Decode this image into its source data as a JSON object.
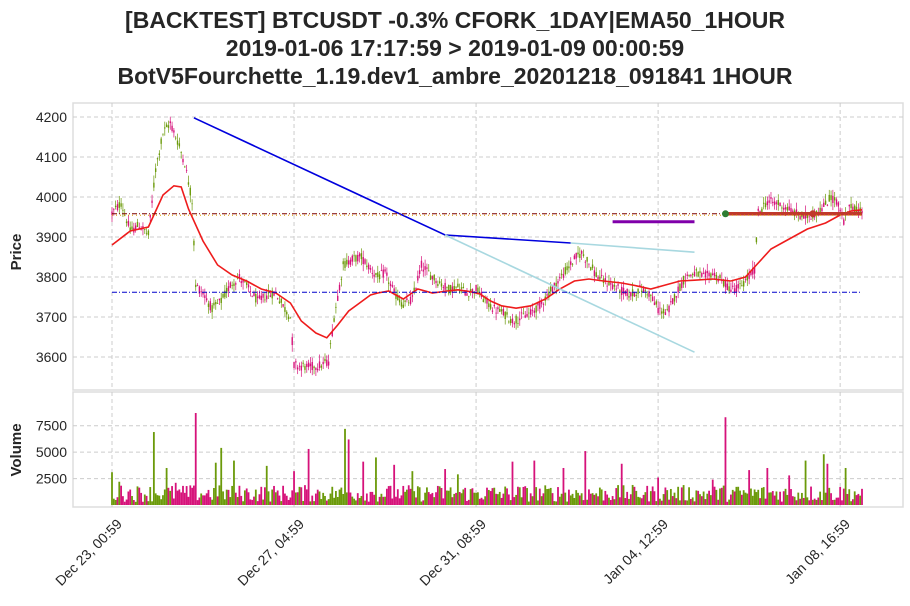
{
  "title": {
    "line1": "[BACKTEST] BTCUSDT -0.3% CFORK_1DAY|EMA50_1HOUR",
    "line2": "2019-01-06 17:17:59 > 2019-01-09 00:00:59",
    "line3": "BotV5Fourchette_1.19.dev1_ambre_20201218_091841 1HOUR"
  },
  "colors": {
    "up": "#6b9a0a",
    "down": "#d6127a",
    "ema": "#ee1c1c",
    "trend_line": "#0000dd",
    "fork_line": "#a8d8e0",
    "entry_line": "#7a0000",
    "mid_line": "#0000cc",
    "signal": "#8000aa",
    "position": "#c0392b",
    "grid": "#cccccc"
  },
  "chart_data": [
    {
      "type": "candlestick",
      "panel": "price",
      "ylabel": "Price",
      "ylim": [
        3520,
        4230
      ],
      "yticks": [
        3600,
        3700,
        3800,
        3900,
        4000,
        4100,
        4200
      ],
      "x_tick_labels": [
        "Dec 23, 00:59",
        "Dec 27, 04:59",
        "Dec 31, 08:59",
        "Jan 04, 12:59",
        "Jan 08, 16:59"
      ],
      "x_range_hours": [
        0,
        412
      ],
      "tick_hours": [
        0,
        100,
        200,
        300,
        400
      ],
      "price_path": [
        [
          0,
          3960
        ],
        [
          5,
          3985
        ],
        [
          10,
          3915
        ],
        [
          15,
          3930
        ],
        [
          20,
          3905
        ],
        [
          24,
          4070
        ],
        [
          28,
          4160
        ],
        [
          32,
          4185
        ],
        [
          36,
          4140
        ],
        [
          40,
          4085
        ],
        [
          44,
          3990
        ],
        [
          46,
          3780
        ],
        [
          50,
          3760
        ],
        [
          55,
          3720
        ],
        [
          60,
          3740
        ],
        [
          65,
          3780
        ],
        [
          70,
          3800
        ],
        [
          75,
          3770
        ],
        [
          80,
          3740
        ],
        [
          85,
          3755
        ],
        [
          90,
          3760
        ],
        [
          95,
          3720
        ],
        [
          98,
          3700
        ],
        [
          100,
          3580
        ],
        [
          108,
          3575
        ],
        [
          115,
          3580
        ],
        [
          119,
          3590
        ],
        [
          122,
          3700
        ],
        [
          127,
          3830
        ],
        [
          132,
          3845
        ],
        [
          137,
          3850
        ],
        [
          142,
          3820
        ],
        [
          146,
          3800
        ],
        [
          150,
          3810
        ],
        [
          155,
          3760
        ],
        [
          160,
          3730
        ],
        [
          165,
          3745
        ],
        [
          170,
          3830
        ],
        [
          175,
          3805
        ],
        [
          180,
          3785
        ],
        [
          185,
          3770
        ],
        [
          190,
          3775
        ],
        [
          195,
          3760
        ],
        [
          200,
          3770
        ],
        [
          205,
          3740
        ],
        [
          210,
          3720
        ],
        [
          215,
          3710
        ],
        [
          220,
          3690
        ],
        [
          225,
          3700
        ],
        [
          230,
          3710
        ],
        [
          235,
          3730
        ],
        [
          240,
          3760
        ],
        [
          245,
          3790
        ],
        [
          250,
          3820
        ],
        [
          255,
          3850
        ],
        [
          258,
          3860
        ],
        [
          262,
          3835
        ],
        [
          266,
          3805
        ],
        [
          270,
          3790
        ],
        [
          275,
          3780
        ],
        [
          280,
          3765
        ],
        [
          285,
          3755
        ],
        [
          290,
          3770
        ],
        [
          295,
          3760
        ],
        [
          300,
          3720
        ],
        [
          305,
          3710
        ],
        [
          310,
          3760
        ],
        [
          315,
          3800
        ],
        [
          320,
          3810
        ],
        [
          325,
          3800
        ],
        [
          330,
          3810
        ],
        [
          335,
          3790
        ],
        [
          340,
          3770
        ],
        [
          345,
          3775
        ],
        [
          350,
          3800
        ],
        [
          353,
          3820
        ],
        [
          355,
          3960
        ],
        [
          360,
          3990
        ],
        [
          365,
          3985
        ],
        [
          370,
          3975
        ],
        [
          375,
          3960
        ],
        [
          380,
          3950
        ],
        [
          385,
          3955
        ],
        [
          390,
          3970
        ],
        [
          395,
          4000
        ],
        [
          398,
          3990
        ],
        [
          402,
          3940
        ],
        [
          406,
          3980
        ],
        [
          410,
          3965
        ],
        [
          412,
          3960
        ]
      ],
      "ema": [
        [
          0,
          3880
        ],
        [
          10,
          3915
        ],
        [
          20,
          3925
        ],
        [
          28,
          4005
        ],
        [
          34,
          4028
        ],
        [
          38,
          4025
        ],
        [
          42,
          3970
        ],
        [
          50,
          3890
        ],
        [
          58,
          3830
        ],
        [
          66,
          3805
        ],
        [
          74,
          3790
        ],
        [
          82,
          3770
        ],
        [
          90,
          3760
        ],
        [
          98,
          3735
        ],
        [
          104,
          3690
        ],
        [
          112,
          3660
        ],
        [
          118,
          3648
        ],
        [
          124,
          3680
        ],
        [
          130,
          3715
        ],
        [
          136,
          3735
        ],
        [
          142,
          3755
        ],
        [
          146,
          3760
        ],
        [
          152,
          3765
        ],
        [
          160,
          3745
        ],
        [
          168,
          3770
        ],
        [
          176,
          3760
        ],
        [
          184,
          3765
        ],
        [
          190,
          3768
        ],
        [
          196,
          3764
        ],
        [
          202,
          3758
        ],
        [
          208,
          3740
        ],
        [
          214,
          3728
        ],
        [
          222,
          3722
        ],
        [
          230,
          3728
        ],
        [
          238,
          3745
        ],
        [
          246,
          3770
        ],
        [
          254,
          3790
        ],
        [
          262,
          3795
        ],
        [
          270,
          3790
        ],
        [
          280,
          3785
        ],
        [
          288,
          3778
        ],
        [
          296,
          3770
        ],
        [
          304,
          3780
        ],
        [
          312,
          3790
        ],
        [
          320,
          3792
        ],
        [
          330,
          3795
        ],
        [
          340,
          3790
        ],
        [
          348,
          3800
        ],
        [
          354,
          3830
        ],
        [
          362,
          3870
        ],
        [
          372,
          3895
        ],
        [
          382,
          3920
        ],
        [
          392,
          3935
        ],
        [
          400,
          3955
        ],
        [
          406,
          3965
        ],
        [
          412,
          3968
        ]
      ],
      "lines": [
        {
          "name": "trend",
          "points": [
            [
              45,
              4198
            ],
            [
              183,
              3905
            ],
            [
              252,
              3885
            ]
          ],
          "color_key": "trend_line"
        },
        {
          "name": "fork-upper",
          "points": [
            [
              252,
              3885
            ],
            [
              320,
              3862
            ]
          ],
          "color_key": "fork_line"
        },
        {
          "name": "fork-lower",
          "points": [
            [
              183,
              3905
            ],
            [
              320,
              3612
            ]
          ],
          "color_key": "fork_line"
        },
        {
          "name": "entry",
          "points": [
            [
              0,
              3958
            ],
            [
              412,
              3958
            ]
          ],
          "color_key": "entry_line",
          "dashed": true
        },
        {
          "name": "mid",
          "points": [
            [
              0,
              3762
            ],
            [
              412,
              3762
            ]
          ],
          "color_key": "mid_line",
          "dashed": true
        },
        {
          "name": "signal",
          "points": [
            [
              275,
              3938
            ],
            [
              320,
              3938
            ]
          ],
          "color_key": "signal"
        },
        {
          "name": "position",
          "points": [
            [
              337,
              3958
            ],
            [
              412,
              3958
            ]
          ],
          "color_key": "position"
        }
      ]
    },
    {
      "type": "bar",
      "panel": "volume",
      "ylabel": "Volume",
      "ylim": [
        0,
        9300
      ],
      "yticks": [
        2500,
        5000,
        7500
      ],
      "spikes": [
        [
          0,
          3100
        ],
        [
          4,
          2200
        ],
        [
          23,
          6900
        ],
        [
          30,
          3500
        ],
        [
          35,
          2100
        ],
        [
          46,
          8700
        ],
        [
          57,
          4000
        ],
        [
          60,
          5400
        ],
        [
          67,
          4200
        ],
        [
          85,
          3700
        ],
        [
          100,
          3200
        ],
        [
          108,
          5300
        ],
        [
          128,
          7200
        ],
        [
          130,
          6200
        ],
        [
          138,
          4100
        ],
        [
          145,
          4500
        ],
        [
          155,
          3800
        ],
        [
          165,
          3200
        ],
        [
          183,
          3400
        ],
        [
          190,
          2900
        ],
        [
          220,
          4100
        ],
        [
          232,
          4200
        ],
        [
          248,
          3500
        ],
        [
          260,
          5100
        ],
        [
          280,
          3900
        ],
        [
          300,
          2600
        ],
        [
          330,
          2400
        ],
        [
          337,
          8300
        ],
        [
          350,
          3300
        ],
        [
          360,
          3500
        ],
        [
          372,
          2800
        ],
        [
          381,
          4200
        ],
        [
          391,
          4800
        ],
        [
          393,
          3900
        ],
        [
          403,
          3500
        ]
      ]
    }
  ]
}
